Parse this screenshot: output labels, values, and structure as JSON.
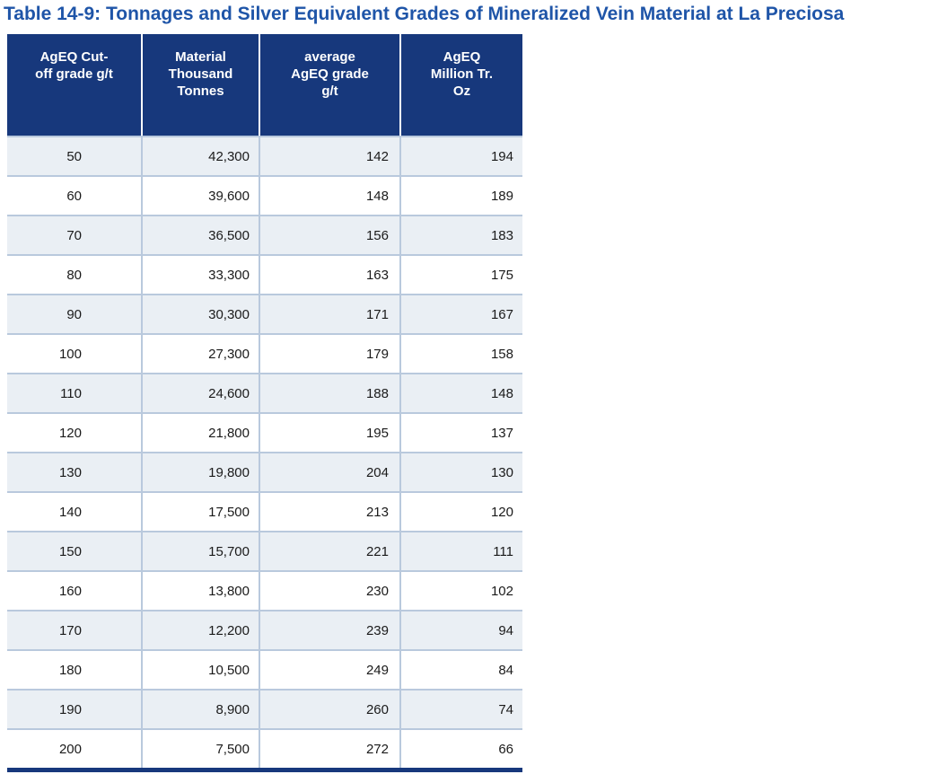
{
  "page": {
    "title": "Table 14-9: Tonnages and Silver Equivalent Grades of Mineralized Vein Material at La Preciosa"
  },
  "colors": {
    "header_bg": "#17387C",
    "title_text": "#1F55A8",
    "stripe_row": "#EAEFF4",
    "row_divider": "#B9C9DD",
    "bottom_bar": "#17387C",
    "header_text": "#FFFFFF",
    "body_text": "#1A1A1A"
  },
  "table": {
    "headers": [
      "AgEQ Cut-\noff grade g/t",
      "Material\nThousand\nTonnes",
      "average\nAgEQ grade\ng/t",
      "AgEQ\nMillion Tr.\nOz"
    ],
    "rows": [
      [
        "50",
        "42,300",
        "142",
        "194"
      ],
      [
        "60",
        "39,600",
        "148",
        "189"
      ],
      [
        "70",
        "36,500",
        "156",
        "183"
      ],
      [
        "80",
        "33,300",
        "163",
        "175"
      ],
      [
        "90",
        "30,300",
        "171",
        "167"
      ],
      [
        "100",
        "27,300",
        "179",
        "158"
      ],
      [
        "110",
        "24,600",
        "188",
        "148"
      ],
      [
        "120",
        "21,800",
        "195",
        "137"
      ],
      [
        "130",
        "19,800",
        "204",
        "130"
      ],
      [
        "140",
        "17,500",
        "213",
        "120"
      ],
      [
        "150",
        "15,700",
        "221",
        "111"
      ],
      [
        "160",
        "13,800",
        "230",
        "102"
      ],
      [
        "170",
        "12,200",
        "239",
        "94"
      ],
      [
        "180",
        "10,500",
        "249",
        "84"
      ],
      [
        "190",
        "8,900",
        "260",
        "74"
      ],
      [
        "200",
        "7,500",
        "272",
        "66"
      ]
    ]
  }
}
